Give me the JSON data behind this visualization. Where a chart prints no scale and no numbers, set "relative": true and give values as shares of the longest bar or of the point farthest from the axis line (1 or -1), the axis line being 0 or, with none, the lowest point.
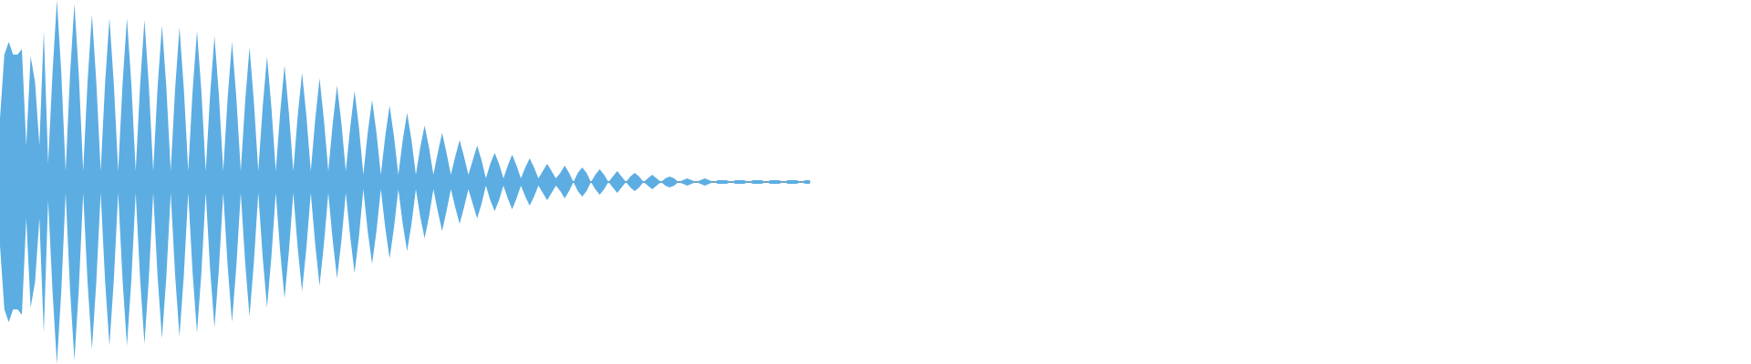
{
  "chart_data": {
    "type": "area",
    "relative": true,
    "categories": [
      null,
      null,
      null,
      null,
      null,
      null,
      null,
      null,
      null,
      null,
      null,
      null,
      null,
      null,
      null,
      null,
      null,
      null,
      null,
      null,
      null,
      null,
      null,
      null,
      null,
      null,
      null,
      null,
      null,
      null,
      null,
      null,
      null,
      null,
      null,
      null,
      null,
      null,
      null,
      null,
      null,
      null,
      null,
      null,
      null,
      null,
      null,
      null,
      null,
      null,
      null,
      null,
      null,
      null,
      null,
      null,
      null,
      null,
      null,
      null,
      null,
      null,
      null,
      null,
      null,
      null,
      null,
      null,
      null,
      null,
      null,
      null,
      null,
      null,
      null,
      null,
      null,
      null,
      null,
      null,
      null,
      null,
      null,
      null,
      null,
      null,
      null,
      null,
      null,
      null,
      null,
      null,
      null,
      null,
      null,
      null,
      null,
      null,
      null,
      null,
      null,
      null,
      null,
      null,
      null,
      null,
      null,
      null,
      null,
      null,
      null,
      null,
      null,
      null,
      null,
      null,
      null,
      null,
      null,
      null,
      null,
      null,
      null,
      null,
      null,
      null,
      null,
      null,
      null,
      null,
      null,
      null,
      null,
      null,
      null,
      null,
      null,
      null,
      null,
      null,
      null,
      null,
      null,
      null,
      null,
      null,
      null,
      null,
      null,
      null,
      null,
      null,
      null,
      null,
      null,
      null,
      null,
      null,
      null,
      null,
      null,
      null,
      null,
      null,
      null,
      null,
      null,
      null,
      null,
      null,
      null,
      null,
      null,
      null,
      null,
      null,
      null,
      null,
      null,
      null,
      null,
      null,
      null,
      null,
      null,
      null
    ],
    "series": [
      {
        "color": "#5dade2",
        "values": [
          0.35,
          0.7,
          0.77,
          0.7,
          0.7,
          0.73,
          0.2,
          0.69,
          0.55,
          0.2,
          0.83,
          0.1,
          0.6,
          1.0,
          0.6,
          0.06,
          0.59,
          0.98,
          0.59,
          0.06,
          0.55,
          0.92,
          0.55,
          0.06,
          0.54,
          0.9,
          0.54,
          0.06,
          0.54,
          0.9,
          0.54,
          0.06,
          0.53,
          0.89,
          0.53,
          0.06,
          0.52,
          0.86,
          0.52,
          0.06,
          0.51,
          0.85,
          0.51,
          0.06,
          0.5,
          0.83,
          0.5,
          0.06,
          0.48,
          0.8,
          0.48,
          0.06,
          0.46,
          0.77,
          0.46,
          0.06,
          0.44,
          0.74,
          0.44,
          0.06,
          0.41,
          0.69,
          0.41,
          0.06,
          0.38,
          0.64,
          0.38,
          0.06,
          0.36,
          0.6,
          0.36,
          0.06,
          0.34,
          0.57,
          0.34,
          0.06,
          0.32,
          0.53,
          0.32,
          0.06,
          0.3,
          0.5,
          0.3,
          0.04,
          0.27,
          0.45,
          0.27,
          0.04,
          0.25,
          0.42,
          0.25,
          0.04,
          0.23,
          0.38,
          0.23,
          0.04,
          0.19,
          0.31,
          0.19,
          0.04,
          0.16,
          0.27,
          0.16,
          0.04,
          0.14,
          0.23,
          0.14,
          0.04,
          0.12,
          0.2,
          0.12,
          0.02,
          0.1,
          0.16,
          0.1,
          0.02,
          0.09,
          0.15,
          0.09,
          0.02,
          0.08,
          0.13,
          0.08,
          0.02,
          0.06,
          0.1,
          0.06,
          0.02,
          0.05,
          0.09,
          0.05,
          0,
          0.05,
          0.08,
          0.05,
          0,
          0.04,
          0.07,
          0.04,
          0,
          0.03,
          0.06,
          0.03,
          0,
          0.03,
          0.05,
          0.03,
          0,
          0.02,
          0.04,
          0.02,
          0,
          0.02,
          0.03,
          0.02,
          0,
          0.01,
          0.02,
          0.01,
          0,
          0.01,
          0.02,
          0.01,
          0,
          0.01,
          0.01,
          0.01,
          0,
          0.01,
          0.01,
          0.01,
          0,
          0.01,
          0.01,
          0.01,
          0,
          0.01,
          0.01,
          0.01,
          0,
          0.01,
          0.01,
          0.01,
          0,
          0.01,
          0.01
        ]
      },
      {
        "color": "#5caee2",
        "values": [
          -0.35,
          -0.7,
          -0.77,
          -0.7,
          -0.7,
          -0.73,
          -0.2,
          -0.69,
          -0.55,
          -0.2,
          -0.83,
          -0.1,
          -0.6,
          -1.0,
          -0.6,
          -0.06,
          -0.59,
          -0.98,
          -0.59,
          -0.06,
          -0.55,
          -0.92,
          -0.55,
          -0.06,
          -0.54,
          -0.9,
          -0.54,
          -0.06,
          -0.54,
          -0.9,
          -0.54,
          -0.06,
          -0.53,
          -0.89,
          -0.53,
          -0.06,
          -0.52,
          -0.86,
          -0.52,
          -0.06,
          -0.51,
          -0.85,
          -0.51,
          -0.06,
          -0.5,
          -0.83,
          -0.5,
          -0.06,
          -0.48,
          -0.8,
          -0.48,
          -0.06,
          -0.46,
          -0.77,
          -0.46,
          -0.06,
          -0.44,
          -0.74,
          -0.44,
          -0.06,
          -0.41,
          -0.69,
          -0.41,
          -0.06,
          -0.38,
          -0.64,
          -0.38,
          -0.06,
          -0.36,
          -0.6,
          -0.36,
          -0.06,
          -0.34,
          -0.57,
          -0.34,
          -0.06,
          -0.32,
          -0.53,
          -0.32,
          -0.06,
          -0.3,
          -0.5,
          -0.3,
          -0.04,
          -0.27,
          -0.45,
          -0.27,
          -0.04,
          -0.25,
          -0.42,
          -0.25,
          -0.04,
          -0.23,
          -0.38,
          -0.23,
          -0.04,
          -0.19,
          -0.31,
          -0.19,
          -0.04,
          -0.16,
          -0.27,
          -0.16,
          -0.04,
          -0.14,
          -0.23,
          -0.14,
          -0.04,
          -0.12,
          -0.2,
          -0.12,
          -0.02,
          -0.1,
          -0.16,
          -0.1,
          -0.02,
          -0.09,
          -0.15,
          -0.09,
          -0.02,
          -0.08,
          -0.13,
          -0.08,
          -0.02,
          -0.06,
          -0.1,
          -0.06,
          -0.02,
          -0.05,
          -0.09,
          -0.05,
          0,
          -0.05,
          -0.08,
          -0.05,
          0,
          -0.04,
          -0.07,
          -0.04,
          0,
          -0.03,
          -0.06,
          -0.03,
          0,
          -0.03,
          -0.05,
          -0.03,
          0,
          -0.02,
          -0.04,
          -0.02,
          0,
          -0.02,
          -0.03,
          -0.02,
          0,
          -0.01,
          -0.02,
          -0.01,
          0,
          -0.01,
          -0.02,
          -0.01,
          0,
          -0.01,
          -0.01,
          -0.01,
          0,
          -0.01,
          -0.01,
          -0.01,
          0,
          -0.01,
          -0.01,
          -0.01,
          0,
          -0.01,
          -0.01,
          -0.01,
          0,
          -0.01,
          -0.01,
          -0.01,
          0,
          -0.01,
          -0.01
        ]
      }
    ]
  }
}
